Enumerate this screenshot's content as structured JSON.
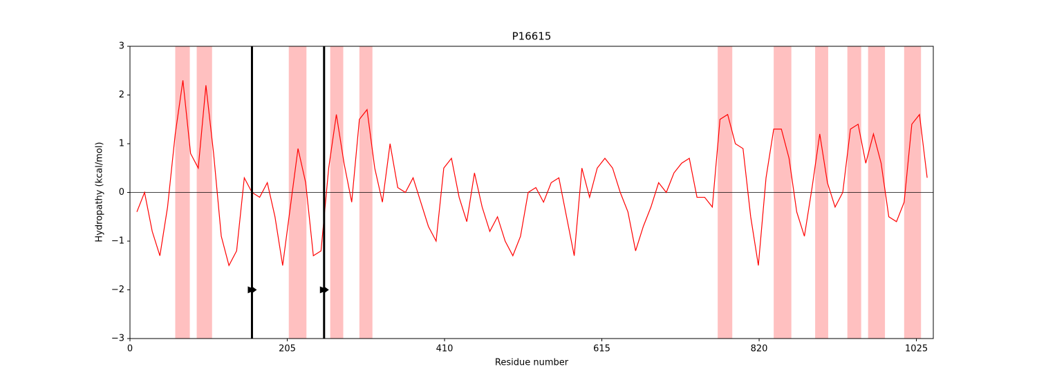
{
  "chart_data": {
    "type": "line",
    "title": "P16615",
    "xlabel": "Residue number",
    "ylabel": "Hydropathy (kcal/mol)",
    "xlim": [
      0,
      1047
    ],
    "ylim": [
      -3,
      3
    ],
    "xticks": [
      0,
      205,
      410,
      615,
      820,
      1025
    ],
    "yticks": [
      {
        "value": -3,
        "label": "−3"
      },
      {
        "value": -2,
        "label": "−2"
      },
      {
        "value": -1,
        "label": "−1"
      },
      0,
      1,
      2,
      3
    ],
    "hline": 0,
    "highlight_ranges": [
      [
        59,
        78
      ],
      [
        87,
        107
      ],
      [
        207,
        230
      ],
      [
        261,
        278
      ],
      [
        299,
        316
      ],
      [
        766,
        785
      ],
      [
        839,
        862
      ],
      [
        893,
        910
      ],
      [
        935,
        953
      ],
      [
        962,
        984
      ],
      [
        1009,
        1031
      ]
    ],
    "highlight_color": "#ffc0c0",
    "vlines": [
      159,
      253
    ],
    "markers": {
      "x": [
        159,
        253
      ],
      "y": [
        -2,
        -2
      ],
      "color": "#000000"
    },
    "series": [
      {
        "color": "#ff0000",
        "x": [
          9,
          19,
          29,
          39,
          49,
          59,
          69,
          79,
          89,
          99,
          109,
          119,
          129,
          139,
          149,
          159,
          169,
          179,
          189,
          199,
          209,
          219,
          229,
          239,
          249,
          259,
          269,
          279,
          289,
          299,
          309,
          319,
          329,
          339,
          349,
          359,
          369,
          379,
          389,
          399,
          409,
          419,
          429,
          439,
          449,
          459,
          469,
          479,
          489,
          499,
          509,
          519,
          529,
          539,
          549,
          559,
          569,
          579,
          589,
          599,
          609,
          619,
          629,
          639,
          649,
          659,
          669,
          679,
          689,
          699,
          709,
          719,
          729,
          739,
          749,
          759,
          769,
          779,
          789,
          799,
          809,
          819,
          829,
          839,
          849,
          859,
          869,
          879,
          889,
          899,
          909,
          919,
          929,
          939,
          949,
          959,
          969,
          979,
          989,
          999,
          1009,
          1019,
          1029,
          1039
        ],
        "values": [
          -0.4,
          0.0,
          -0.8,
          -1.3,
          -0.3,
          1.2,
          2.3,
          0.8,
          0.5,
          2.2,
          0.8,
          -0.9,
          -1.5,
          -1.2,
          0.3,
          0.0,
          -0.1,
          0.2,
          -0.5,
          -1.5,
          -0.3,
          0.9,
          0.2,
          -1.3,
          -1.2,
          0.5,
          1.6,
          0.6,
          -0.2,
          1.5,
          1.7,
          0.5,
          -0.2,
          1.0,
          0.1,
          0.0,
          0.3,
          -0.2,
          -0.7,
          -1.0,
          0.5,
          0.7,
          -0.1,
          -0.6,
          0.4,
          -0.3,
          -0.8,
          -0.5,
          -1.0,
          -1.3,
          -0.9,
          0.0,
          0.1,
          -0.2,
          0.2,
          0.3,
          -0.5,
          -1.3,
          0.5,
          -0.1,
          0.5,
          0.7,
          0.5,
          0.0,
          -0.4,
          -1.2,
          -0.7,
          -0.3,
          0.2,
          0.0,
          0.4,
          0.6,
          0.7,
          -0.1,
          -0.1,
          -0.3,
          1.5,
          1.6,
          1.0,
          0.9,
          -0.5,
          -1.5,
          0.3,
          1.3,
          1.3,
          0.7,
          -0.4,
          -0.9,
          0.1,
          1.2,
          0.2,
          -0.3,
          0.0,
          1.3,
          1.4,
          0.6,
          1.2,
          0.6,
          -0.5,
          -0.6,
          -0.2,
          1.4,
          1.6,
          0.3
        ]
      }
    ]
  }
}
